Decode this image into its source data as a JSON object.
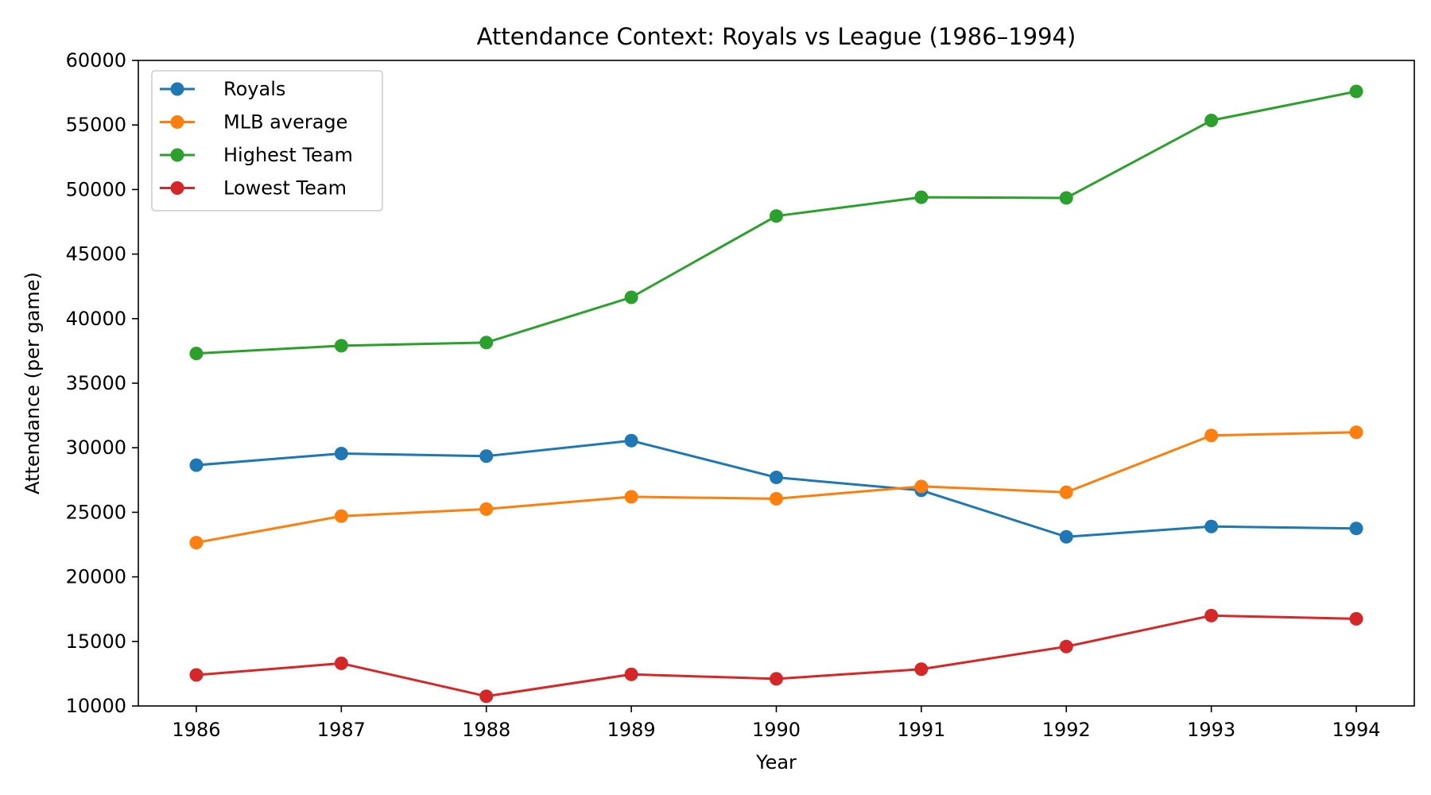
{
  "chart_data": {
    "type": "line",
    "title": "Attendance Context: Royals vs League (1986–1994)",
    "xlabel": "Year",
    "ylabel": "Attendance (per game)",
    "x": [
      1986,
      1987,
      1988,
      1989,
      1990,
      1991,
      1992,
      1993,
      1994
    ],
    "x_tick_labels": [
      "1986",
      "1987",
      "1988",
      "1989",
      "1990",
      "1991",
      "1992",
      "1993",
      "1994"
    ],
    "ylim": [
      10000,
      60000
    ],
    "xlim": [
      1985.6,
      1994.4
    ],
    "y_ticks": [
      10000,
      15000,
      20000,
      25000,
      30000,
      35000,
      40000,
      45000,
      50000,
      55000,
      60000
    ],
    "y_tick_labels": [
      "10000",
      "15000",
      "20000",
      "25000",
      "30000",
      "35000",
      "40000",
      "45000",
      "50000",
      "55000",
      "60000"
    ],
    "grid": false,
    "legend_position": "upper-left",
    "series": [
      {
        "name": "Royals",
        "color": "#1f77b4",
        "values": [
          28650,
          29550,
          29350,
          30550,
          27700,
          26700,
          23100,
          23900,
          23750
        ]
      },
      {
        "name": "MLB average",
        "color": "#ff7f0e",
        "values": [
          22650,
          24700,
          25250,
          26200,
          26050,
          27000,
          26550,
          30950,
          31200
        ]
      },
      {
        "name": "Highest Team",
        "color": "#2ca02c",
        "values": [
          37300,
          37900,
          38150,
          41650,
          47950,
          49400,
          49350,
          55350,
          57600
        ]
      },
      {
        "name": "Lowest Team",
        "color": "#d62728",
        "values": [
          12400,
          13300,
          10750,
          12450,
          12100,
          12850,
          14600,
          17000,
          16750
        ]
      }
    ]
  }
}
